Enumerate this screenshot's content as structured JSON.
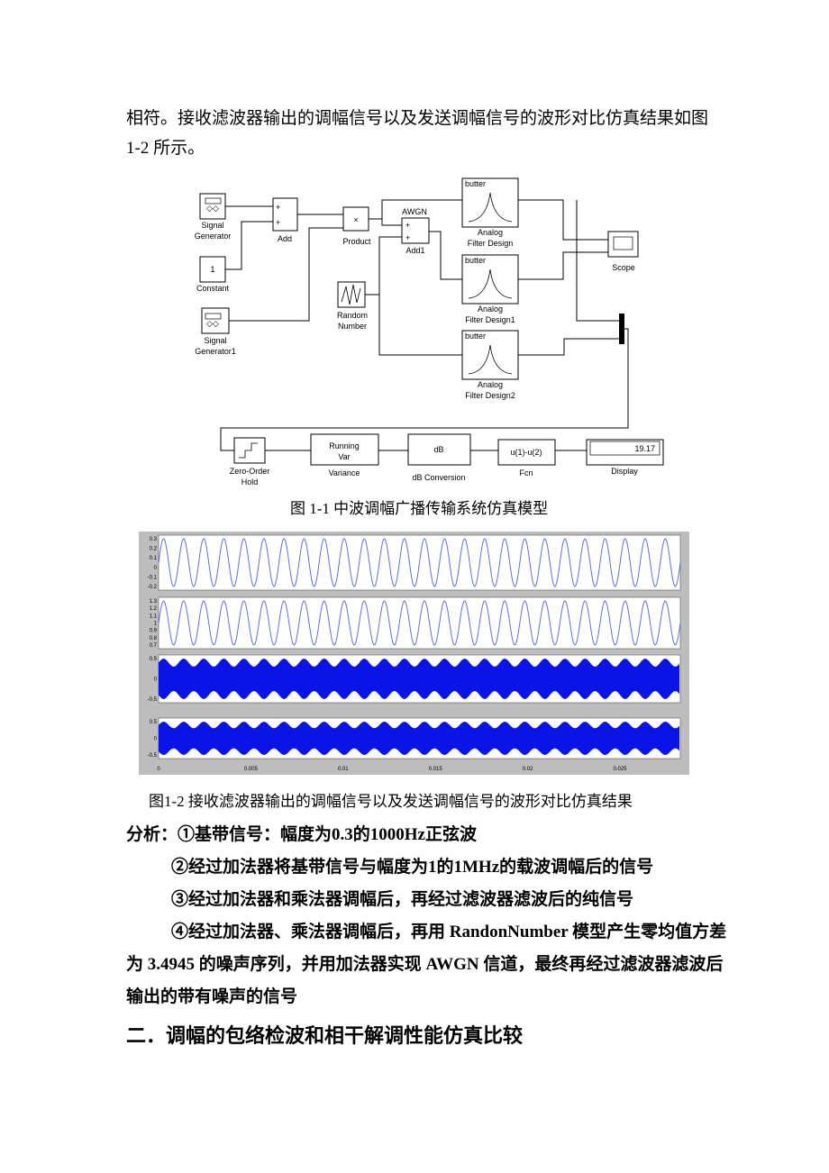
{
  "paragraph": [
    "相符。接收滤波器输出的调幅信号以及发送调幅信号的波形对比仿真结果如图",
    "1-2 所示。"
  ],
  "figure1": {
    "signal_generator": [
      "Signal",
      "Generator"
    ],
    "constant_value": "1",
    "constant": "Constant",
    "signal_generator1": [
      "Signal",
      "Generator1"
    ],
    "plus": "+",
    "add": "Add",
    "product_symbol": "×",
    "product": "Product",
    "awgn": "AWGN",
    "add1": "Add1",
    "random_number": [
      "Random",
      "Number"
    ],
    "butter": "butter",
    "filter": [
      "Analog",
      "Filter Design"
    ],
    "filter1": [
      "Analog",
      "Filter Design1"
    ],
    "filter2": [
      "Analog",
      "Filter Design2"
    ],
    "scope": "Scope",
    "zero_order_hold": [
      "Zero-Order",
      "Hold"
    ],
    "running_var": [
      "Running",
      "Var"
    ],
    "variance": "Variance",
    "db": "dB",
    "db_conversion": "dB Conversion",
    "fcn_expr": "u(1)-u(2)",
    "fcn": "Fcn",
    "display_value": "19.17",
    "display": "Display",
    "caption": "图 1-1  中波调幅广播传输系统仿真模型"
  },
  "figure2": {
    "panels": [
      {
        "yticks": [
          "0.3",
          "0.2",
          "0.1",
          "0",
          "-0.1",
          "-0.2"
        ]
      },
      {
        "yticks": [
          "1.3",
          "1.2",
          "1.1",
          "1",
          "0.9",
          "0.8",
          "0.7"
        ]
      },
      {
        "yticks": [
          "0.5",
          "0",
          "-0.5"
        ]
      },
      {
        "yticks": [
          "0.5",
          "0",
          "-0.5"
        ]
      }
    ],
    "xticks": [
      "0",
      "0.005",
      "0.01",
      "0.015",
      "0.02",
      "0.025"
    ],
    "caption": "图1-2 接收滤波器输出的调幅信号以及发送调幅信号的波形对比仿真结果"
  },
  "analysis": {
    "item1": "分析：①基带信号：幅度为0.3的1000Hz正弦波",
    "item2": "②经过加法器将基带信号与幅度为1的1MHz的载波调幅后的信号",
    "item3": "③经过加法器和乘法器调幅后，再经过滤波器滤波后的纯信号",
    "item4": [
      "④经过加法器、乘法器调幅后，再用 RandonNumber 模型产生零均值方差",
      "为 3.4945 的噪声序列，并用加法器实现 AWGN 信道，最终再经过滤波器滤波后",
      "输出的带有噪声的信号"
    ]
  },
  "heading": "二．调幅的包络检波和相干解调性能仿真比较"
}
